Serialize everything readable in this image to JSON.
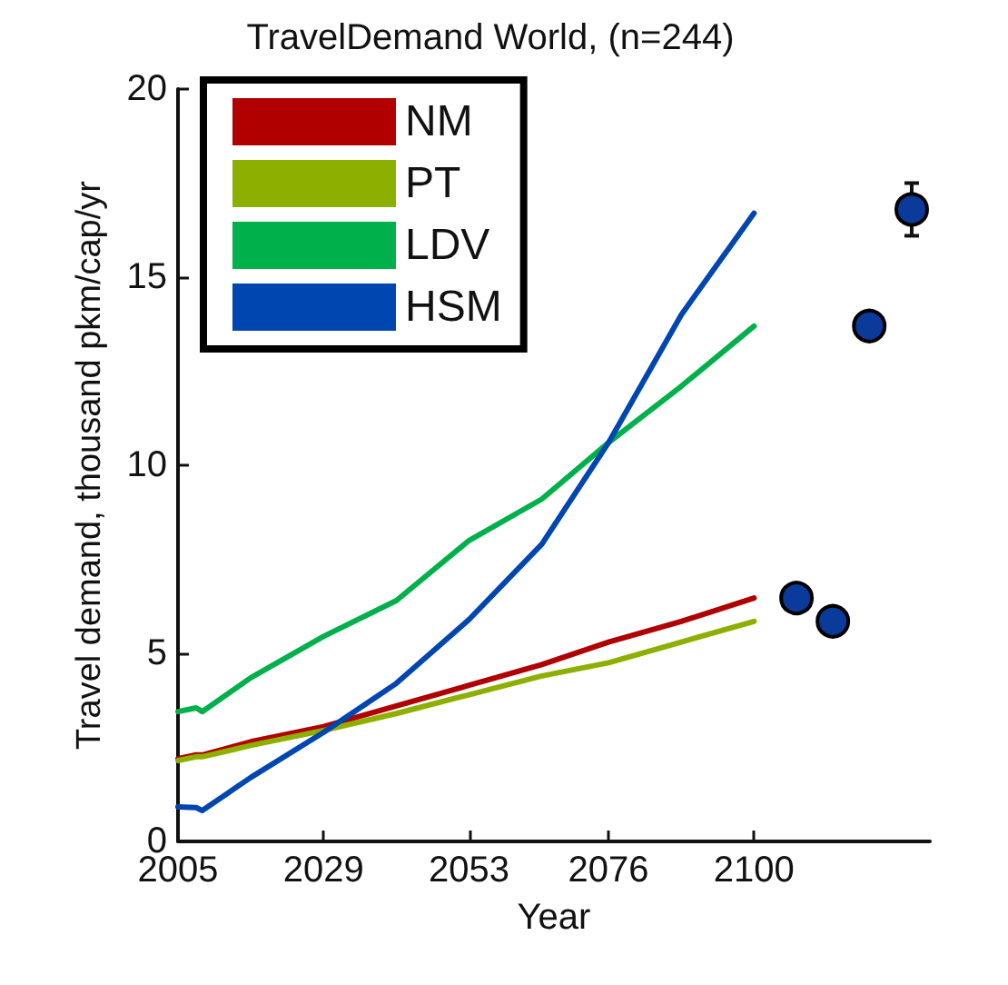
{
  "chart_data": {
    "type": "line",
    "title": "TravelDemand World, (n=244)",
    "xlabel": "Year",
    "ylabel": "Travel demand, thousand pkm/cap/yr",
    "x": [
      2005,
      2008,
      2009,
      2017,
      2029,
      2041,
      2053,
      2065,
      2076,
      2088,
      2100
    ],
    "series": [
      {
        "name": "NM",
        "color": "#b00000",
        "values": [
          2.2,
          2.3,
          2.3,
          2.65,
          3.05,
          3.6,
          4.15,
          4.7,
          5.3,
          5.85,
          6.47
        ]
      },
      {
        "name": "PT",
        "color": "#8db000",
        "values": [
          2.15,
          2.25,
          2.25,
          2.55,
          2.95,
          3.4,
          3.9,
          4.4,
          4.75,
          5.3,
          5.85
        ]
      },
      {
        "name": "LDV",
        "color": "#00b04a",
        "values": [
          3.45,
          3.55,
          3.45,
          4.35,
          5.45,
          6.4,
          8.0,
          9.1,
          10.6,
          12.1,
          13.7
        ]
      },
      {
        "name": "HSM",
        "color": "#0046b0",
        "values": [
          0.92,
          0.9,
          0.82,
          1.7,
          2.9,
          4.2,
          5.9,
          7.9,
          10.6,
          14.0,
          16.7
        ]
      },
      {
        "type": "scatter",
        "marker": "circle",
        "color": "#0a3a9a",
        "x": [
          2107,
          2113,
          2119,
          2126
        ],
        "values": [
          6.47,
          5.85,
          13.7,
          16.8
        ],
        "errors": [
          null,
          null,
          0.3,
          0.7
        ]
      }
    ],
    "xlim": [
      2005,
      2129
    ],
    "xticks": [
      2005,
      2029,
      2053,
      2076,
      2100
    ],
    "ylim": [
      0,
      20
    ],
    "yticks": [
      0,
      5,
      10,
      15,
      20
    ],
    "legend": "top left",
    "marker": "none",
    "line_style": "solid"
  }
}
